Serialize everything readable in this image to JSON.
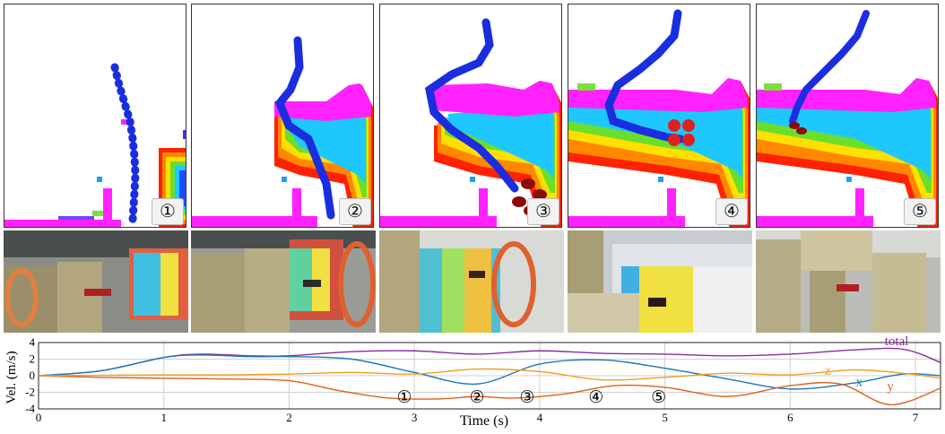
{
  "panels": [
    {
      "badge": "①"
    },
    {
      "badge": "②"
    },
    {
      "badge": "③"
    },
    {
      "badge": "④"
    },
    {
      "badge": "⑤"
    }
  ],
  "colors": {
    "trajectory": "#1a2ee0",
    "obstacle_top": "#ff22ff",
    "drone_red": "#8b0a0a",
    "x_series": "#1f77b4",
    "y_series": "#e0601a",
    "z_series": "#f0a020",
    "total_series": "#8a2ca0"
  },
  "chart_data": {
    "type": "line",
    "ylabel": "Vel. (m/s)",
    "xlabel": "Time (s)",
    "xlim": [
      0,
      7.2
    ],
    "ylim": [
      -4,
      4
    ],
    "xticks": [
      "0",
      "1",
      "2",
      "3",
      "4",
      "5",
      "6",
      "7"
    ],
    "yticks": [
      "4",
      "2",
      "0",
      "-2",
      "-4"
    ],
    "grid": true,
    "series": [
      {
        "name": "total",
        "x": [
          0,
          0.5,
          1,
          1.3,
          1.7,
          2,
          2.5,
          3,
          3.5,
          4,
          4.5,
          5,
          5.5,
          6,
          6.5,
          6.9,
          7.2
        ],
        "values": [
          0,
          0.6,
          2.2,
          2.6,
          2.4,
          2.4,
          2.9,
          3,
          2.6,
          3,
          2.7,
          2.6,
          2.4,
          2.6,
          3.1,
          3.2,
          1.6
        ]
      },
      {
        "name": "x",
        "x": [
          0,
          0.5,
          1,
          1.3,
          1.7,
          2,
          2.5,
          3,
          3.5,
          4,
          4.5,
          5,
          5.5,
          6,
          6.5,
          6.9,
          7.2
        ],
        "values": [
          0,
          0.6,
          2.2,
          2.5,
          2.3,
          2.3,
          2.0,
          0.4,
          -1.0,
          1.4,
          1.9,
          0.9,
          -0.4,
          -1.6,
          -0.9,
          0.2,
          0
        ]
      },
      {
        "name": "y",
        "x": [
          0,
          0.5,
          1,
          1.5,
          2,
          2.4,
          2.8,
          3.2,
          3.5,
          3.8,
          4.2,
          4.6,
          5,
          5.5,
          6,
          6.4,
          6.8,
          7.2
        ],
        "values": [
          0,
          -0.2,
          -0.3,
          -0.4,
          -0.6,
          -1.8,
          -2.7,
          -2.8,
          -2.5,
          -2.7,
          -2.2,
          -1.2,
          -1.4,
          -2.5,
          -1.2,
          -1.0,
          -3.5,
          -1.5
        ]
      },
      {
        "name": "z",
        "x": [
          0,
          0.5,
          1,
          1.5,
          2,
          2.5,
          3,
          3.5,
          4,
          4.5,
          5,
          5.5,
          6,
          6.5,
          6.9,
          7.2
        ],
        "values": [
          0,
          0.05,
          0.1,
          0.1,
          0.2,
          0.4,
          0.2,
          0.8,
          0.5,
          -0.5,
          -0.2,
          0.3,
          0.1,
          0.7,
          0.3,
          -0.3
        ]
      }
    ],
    "markers": [
      {
        "label": "①",
        "t": 2.92
      },
      {
        "label": "②",
        "t": 3.5
      },
      {
        "label": "③",
        "t": 3.9
      },
      {
        "label": "④",
        "t": 4.45
      },
      {
        "label": "⑤",
        "t": 4.95
      }
    ],
    "series_labels": [
      {
        "text": "total",
        "series": "total"
      },
      {
        "text": "z",
        "series": "z"
      },
      {
        "text": "x",
        "series": "x"
      },
      {
        "text": "y",
        "series": "y"
      }
    ]
  }
}
